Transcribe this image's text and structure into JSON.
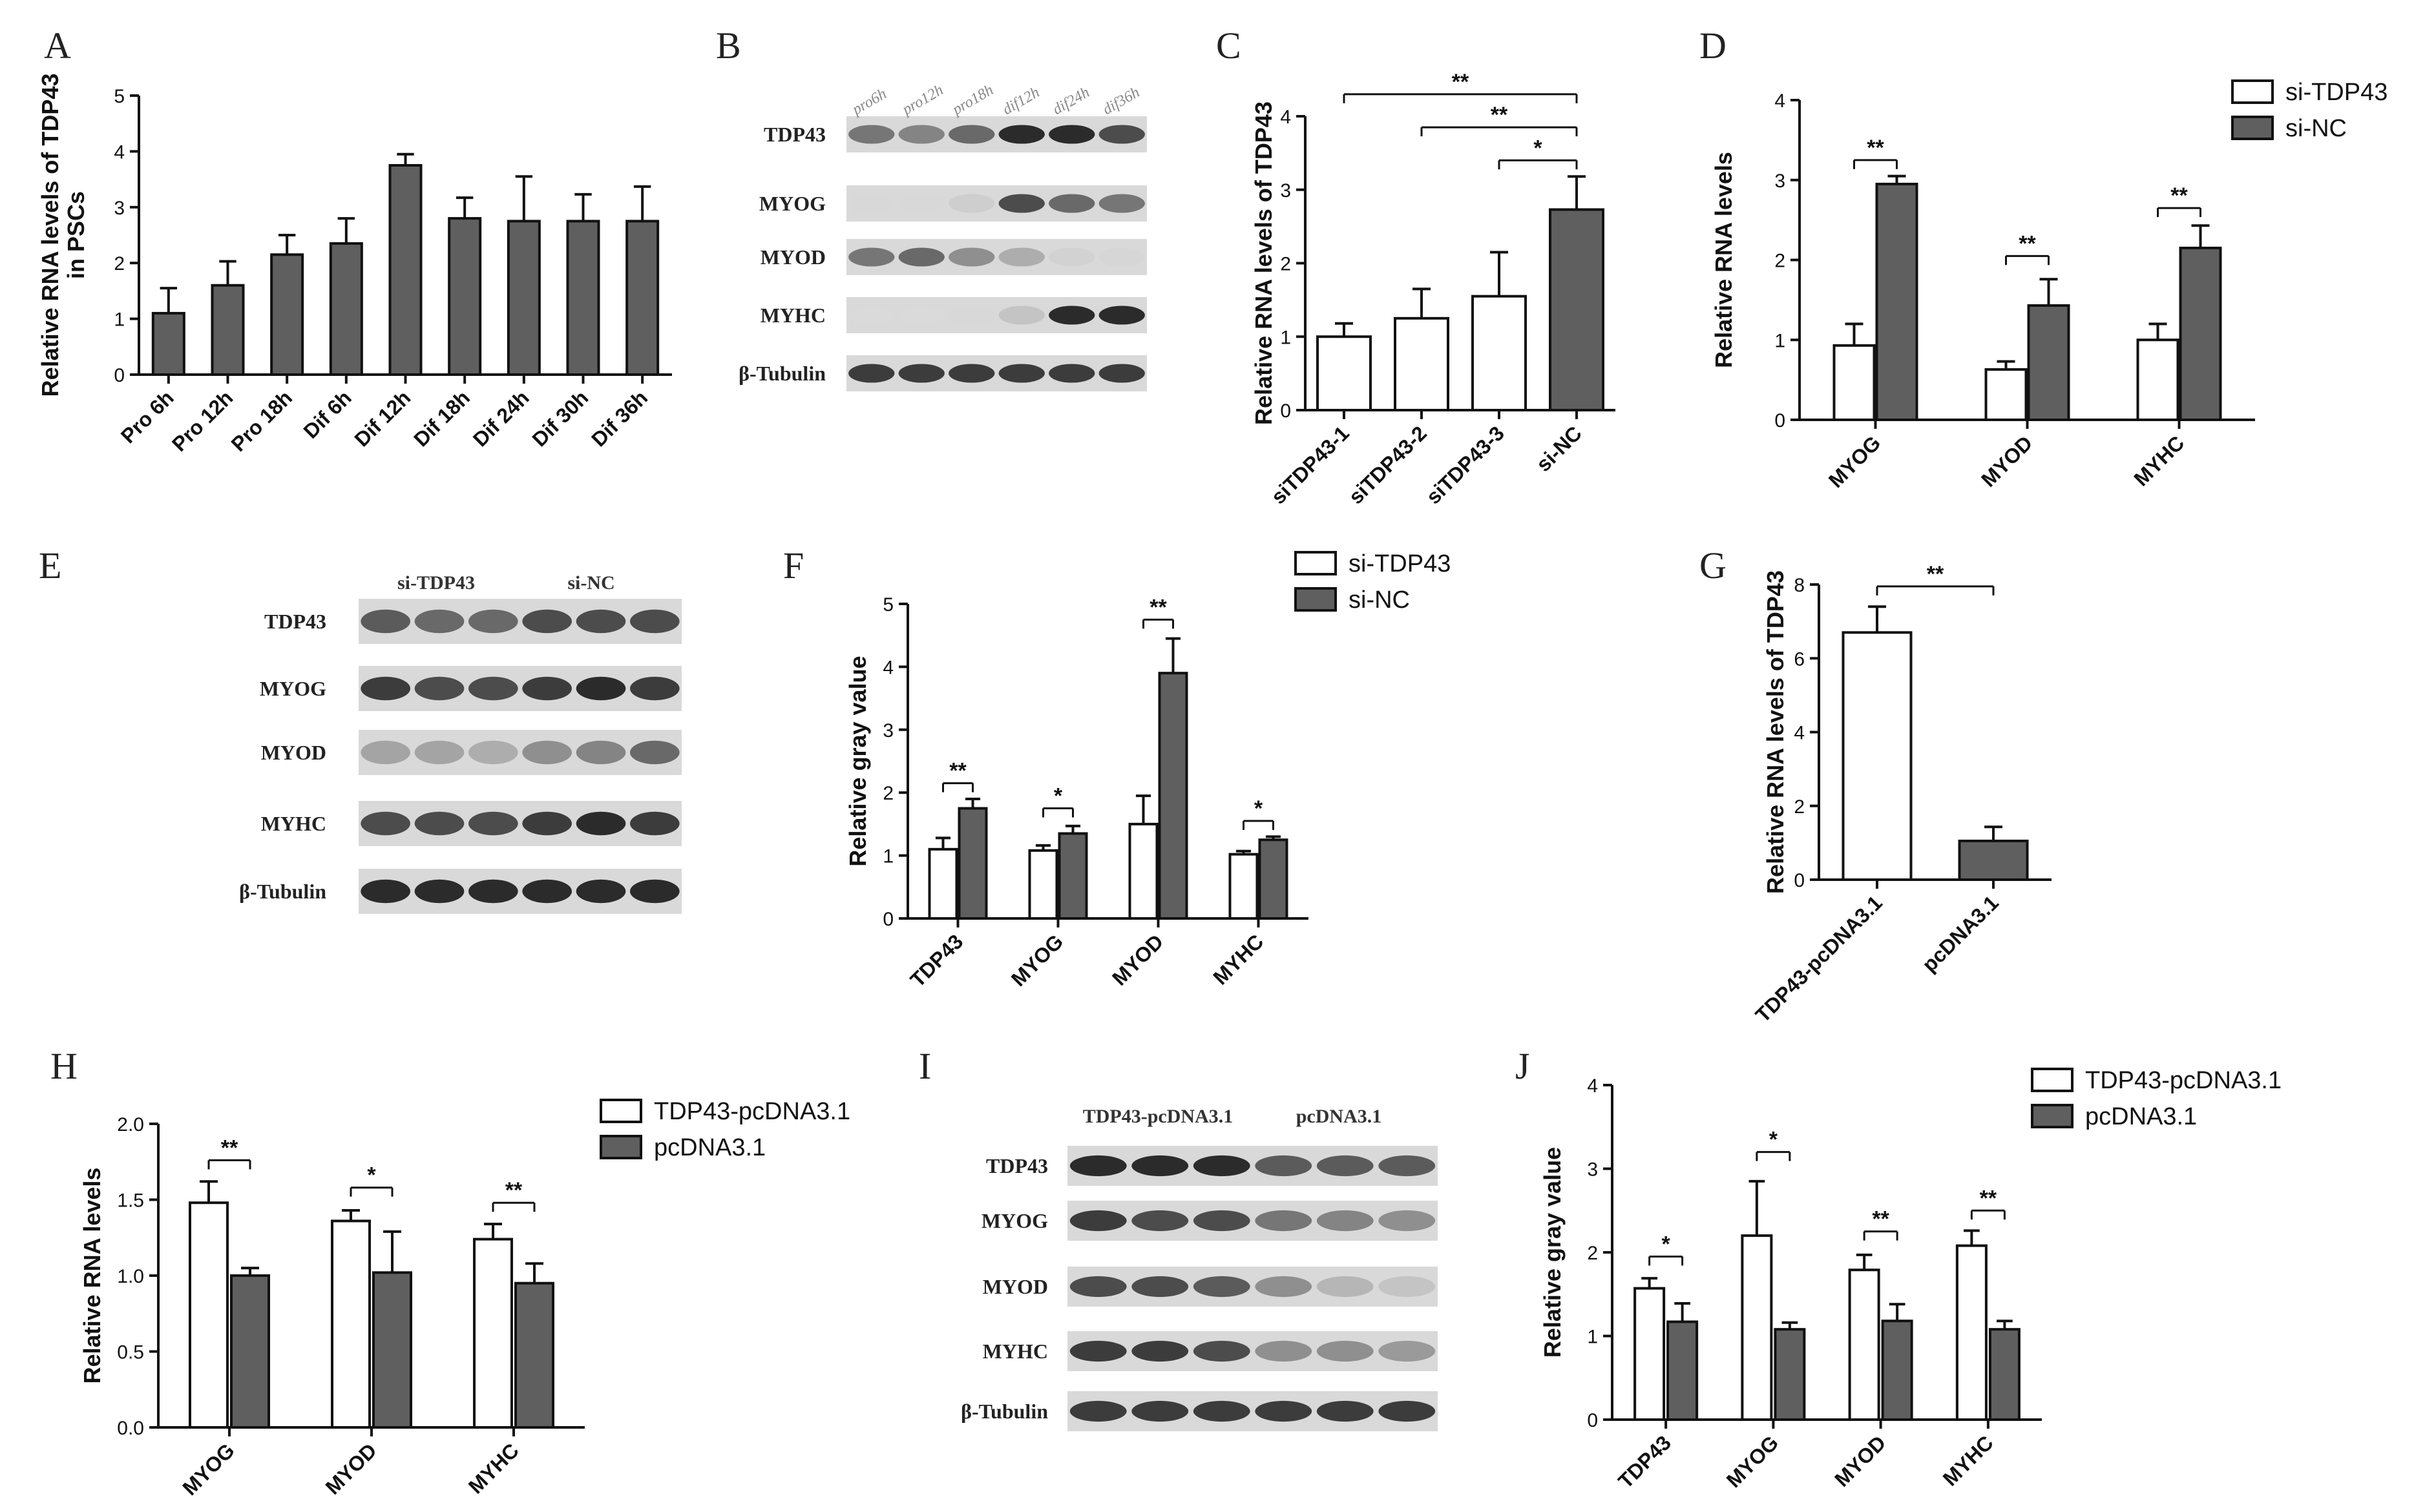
{
  "figure": {
    "panels": {
      "A": "A",
      "B": "B",
      "C": "C",
      "D": "D",
      "E": "E",
      "F": "F",
      "G": "G",
      "H": "H",
      "I": "I",
      "J": "J"
    }
  },
  "colors": {
    "grey": "#5f5f5f",
    "white": "#ffffff",
    "stroke": "#111111"
  },
  "chart_data": [
    {
      "id": "A",
      "type": "bar",
      "ylabel_lines": [
        "Relative RNA levels of TDP43",
        "in PSCs"
      ],
      "ylim": [
        0,
        5
      ],
      "yticks": [
        "0",
        "1",
        "2",
        "3",
        "4",
        "5"
      ],
      "ytick_values": [
        0,
        1,
        2,
        3,
        4,
        5
      ],
      "categories": [
        "Pro 6h",
        "Pro 12h",
        "Pro 18h",
        "Dif 6h",
        "Dif 12h",
        "Dif 18h",
        "Dif 24h",
        "Dif 30h",
        "Dif 36h"
      ],
      "series": [
        {
          "name": "TDP43",
          "color": "#5f5f5f",
          "values": [
            1.1,
            1.6,
            2.15,
            2.35,
            3.75,
            2.8,
            2.75,
            2.75,
            2.75
          ],
          "errors": [
            0.45,
            0.43,
            0.35,
            0.45,
            0.2,
            0.37,
            0.8,
            0.48,
            0.62
          ]
        }
      ],
      "significance": []
    },
    {
      "id": "C",
      "type": "bar",
      "ylabel_lines": [
        "Relative RNA levels of TDP43"
      ],
      "ylim": [
        0,
        4
      ],
      "yticks": [
        "0",
        "1",
        "2",
        "3",
        "4"
      ],
      "ytick_values": [
        0,
        1,
        2,
        3,
        4
      ],
      "categories": [
        "siTDP43-1",
        "siTDP43-2",
        "siTDP43-3",
        "si-NC"
      ],
      "series": [
        {
          "name": "value",
          "color": "#ffffff",
          "values": [
            1.0,
            1.25,
            1.55,
            2.73
          ],
          "errors": [
            0.18,
            0.4,
            0.6,
            0.45
          ],
          "colors": [
            "#ffffff",
            "#ffffff",
            "#ffffff",
            "#5f5f5f"
          ]
        }
      ],
      "significance": [
        {
          "from": 0,
          "to": 3,
          "label": "**",
          "y": 4.3
        },
        {
          "from": 1,
          "to": 3,
          "label": "**",
          "y": 3.85
        },
        {
          "from": 2,
          "to": 3,
          "label": "*",
          "y": 3.4
        }
      ]
    },
    {
      "id": "D",
      "type": "bar",
      "ylabel_lines": [
        "Relative RNA levels"
      ],
      "ylim": [
        0,
        4
      ],
      "yticks": [
        "0",
        "1",
        "2",
        "3",
        "4"
      ],
      "ytick_values": [
        0,
        1,
        2,
        3,
        4
      ],
      "categories": [
        "MYOG",
        "MYOD",
        "MYHC"
      ],
      "legend": [
        "si-TDP43",
        "si-NC"
      ],
      "series": [
        {
          "name": "si-TDP43",
          "color": "#ffffff",
          "values": [
            0.93,
            0.63,
            1.0
          ],
          "errors": [
            0.27,
            0.1,
            0.2
          ]
        },
        {
          "name": "si-NC",
          "color": "#5f5f5f",
          "values": [
            2.95,
            1.43,
            2.15
          ],
          "errors": [
            0.1,
            0.33,
            0.28
          ]
        }
      ],
      "significance": [
        {
          "group": 0,
          "label": "**",
          "y": 3.25
        },
        {
          "group": 1,
          "label": "**",
          "y": 2.05
        },
        {
          "group": 2,
          "label": "**",
          "y": 2.65
        }
      ]
    },
    {
      "id": "F",
      "type": "bar",
      "ylabel_lines": [
        "Relative gray value"
      ],
      "ylim": [
        0,
        5
      ],
      "yticks": [
        "0",
        "1",
        "2",
        "3",
        "4",
        "5"
      ],
      "ytick_values": [
        0,
        1,
        2,
        3,
        4,
        5
      ],
      "categories": [
        "TDP43",
        "MYOG",
        "MYOD",
        "MYHC"
      ],
      "legend": [
        "si-TDP43",
        "si-NC"
      ],
      "series": [
        {
          "name": "si-TDP43",
          "color": "#ffffff",
          "values": [
            1.1,
            1.08,
            1.5,
            1.02
          ],
          "errors": [
            0.18,
            0.08,
            0.45,
            0.05
          ]
        },
        {
          "name": "si-NC",
          "color": "#5f5f5f",
          "values": [
            1.75,
            1.35,
            3.9,
            1.25
          ],
          "errors": [
            0.15,
            0.12,
            0.55,
            0.05
          ]
        }
      ],
      "significance": [
        {
          "group": 0,
          "label": "**",
          "y": 2.15
        },
        {
          "group": 1,
          "label": "*",
          "y": 1.75
        },
        {
          "group": 2,
          "label": "**",
          "y": 4.75
        },
        {
          "group": 3,
          "label": "*",
          "y": 1.55
        }
      ]
    },
    {
      "id": "G",
      "type": "bar",
      "ylabel_lines": [
        "Relative RNA levels of TDP43"
      ],
      "ylim": [
        0,
        8
      ],
      "yticks": [
        "0",
        "2",
        "4",
        "6",
        "8"
      ],
      "ytick_values": [
        0,
        2,
        4,
        6,
        8
      ],
      "categories": [
        "TDP43-pcDNA3.1",
        "pcDNA3.1"
      ],
      "series": [
        {
          "name": "value",
          "color": "#ffffff",
          "values": [
            6.7,
            1.05
          ],
          "errors": [
            0.7,
            0.38
          ],
          "colors": [
            "#ffffff",
            "#5f5f5f"
          ]
        }
      ],
      "significance": [
        {
          "from": 0,
          "to": 1,
          "label": "**",
          "y": 7.95
        }
      ]
    },
    {
      "id": "H",
      "type": "bar",
      "ylabel_lines": [
        "Relative RNA levels"
      ],
      "ylim": [
        0,
        2
      ],
      "yticks": [
        "0.0",
        "0.5",
        "1.0",
        "1.5",
        "2.0"
      ],
      "ytick_values": [
        0,
        0.5,
        1,
        1.5,
        2
      ],
      "categories": [
        "MYOG",
        "MYOD",
        "MYHC"
      ],
      "legend": [
        "TDP43-pcDNA3.1",
        "pcDNA3.1"
      ],
      "series": [
        {
          "name": "TDP43-pcDNA3.1",
          "color": "#ffffff",
          "values": [
            1.48,
            1.36,
            1.24
          ],
          "errors": [
            0.14,
            0.07,
            0.1
          ]
        },
        {
          "name": "pcDNA3.1",
          "color": "#5f5f5f",
          "values": [
            1.0,
            1.02,
            0.95
          ],
          "errors": [
            0.05,
            0.27,
            0.13
          ]
        }
      ],
      "significance": [
        {
          "group": 0,
          "label": "**",
          "y": 1.76
        },
        {
          "group": 1,
          "label": "*",
          "y": 1.58
        },
        {
          "group": 2,
          "label": "**",
          "y": 1.48
        }
      ]
    },
    {
      "id": "J",
      "type": "bar",
      "ylabel_lines": [
        "Relative gray value"
      ],
      "ylim": [
        0,
        4
      ],
      "yticks": [
        "0",
        "1",
        "2",
        "3",
        "4"
      ],
      "ytick_values": [
        0,
        1,
        2,
        3,
        4
      ],
      "categories": [
        "TDP43",
        "MYOG",
        "MYOD",
        "MYHC"
      ],
      "legend": [
        "TDP43-pcDNA3.1",
        "pcDNA3.1"
      ],
      "series": [
        {
          "name": "TDP43-pcDNA3.1",
          "color": "#ffffff",
          "values": [
            1.57,
            2.2,
            1.79,
            2.08
          ],
          "errors": [
            0.12,
            0.65,
            0.18,
            0.18
          ]
        },
        {
          "name": "pcDNA3.1",
          "color": "#5f5f5f",
          "values": [
            1.17,
            1.08,
            1.18,
            1.08
          ],
          "errors": [
            0.22,
            0.08,
            0.2,
            0.1
          ]
        }
      ],
      "significance": [
        {
          "group": 0,
          "label": "*",
          "y": 1.95
        },
        {
          "group": 1,
          "label": "*",
          "y": 3.2
        },
        {
          "group": 2,
          "label": "**",
          "y": 2.25
        },
        {
          "group": 3,
          "label": "**",
          "y": 2.5
        }
      ]
    }
  ],
  "blots": [
    {
      "id": "B",
      "column_labels": [
        "pro6h",
        "pro12h",
        "pro18h",
        "dif12h",
        "dif24h",
        "dif36h"
      ],
      "group_labels": [],
      "rows": [
        {
          "label": "TDP43",
          "intensities": [
            0.7,
            0.65,
            0.75,
            0.95,
            0.95,
            0.85
          ]
        },
        {
          "label": "MYOG",
          "intensities": [
            0.05,
            0.05,
            0.2,
            0.85,
            0.75,
            0.7
          ]
        },
        {
          "label": "MYOD",
          "intensities": [
            0.7,
            0.75,
            0.6,
            0.45,
            0.15,
            0.1
          ]
        },
        {
          "label": "MYHC",
          "intensities": [
            0.0,
            0.0,
            0.05,
            0.3,
            0.95,
            0.95
          ]
        },
        {
          "label": "β-Tubulin",
          "intensities": [
            0.9,
            0.9,
            0.9,
            0.9,
            0.9,
            0.9
          ]
        }
      ]
    },
    {
      "id": "E",
      "column_labels": [],
      "group_labels": [
        "si-TDP43",
        "si-NC"
      ],
      "rows": [
        {
          "label": "TDP43",
          "intensities": [
            0.8,
            0.75,
            0.75,
            0.85,
            0.85,
            0.85
          ]
        },
        {
          "label": "MYOG",
          "intensities": [
            0.9,
            0.85,
            0.85,
            0.9,
            0.95,
            0.9
          ]
        },
        {
          "label": "MYOD",
          "intensities": [
            0.5,
            0.5,
            0.45,
            0.6,
            0.65,
            0.75
          ]
        },
        {
          "label": "MYHC",
          "intensities": [
            0.85,
            0.85,
            0.85,
            0.9,
            0.95,
            0.9
          ]
        },
        {
          "label": "β-Tubulin",
          "intensities": [
            0.95,
            0.95,
            0.95,
            0.95,
            0.95,
            0.95
          ]
        }
      ]
    },
    {
      "id": "I",
      "column_labels": [],
      "group_labels": [
        "TDP43-pcDNA3.1",
        "pcDNA3.1"
      ],
      "rows": [
        {
          "label": "TDP43",
          "intensities": [
            0.95,
            0.95,
            0.95,
            0.8,
            0.8,
            0.8
          ]
        },
        {
          "label": "MYOG",
          "intensities": [
            0.9,
            0.85,
            0.85,
            0.7,
            0.65,
            0.6
          ]
        },
        {
          "label": "MYOD",
          "intensities": [
            0.85,
            0.85,
            0.8,
            0.6,
            0.4,
            0.3
          ]
        },
        {
          "label": "MYHC",
          "intensities": [
            0.9,
            0.9,
            0.85,
            0.6,
            0.6,
            0.55
          ]
        },
        {
          "label": "β-Tubulin",
          "intensities": [
            0.9,
            0.9,
            0.9,
            0.9,
            0.9,
            0.9
          ]
        }
      ]
    }
  ]
}
